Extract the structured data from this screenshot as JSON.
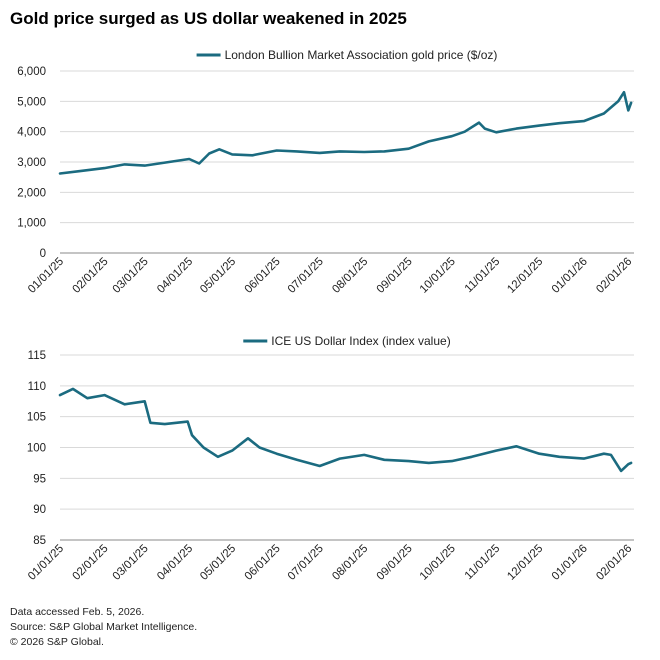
{
  "title": "Gold price surged as US dollar weakened in 2025",
  "footer": {
    "line1": "Data accessed Feb. 5, 2026.",
    "line2": "Source: S&P Global Market Intelligence.",
    "line3": "© 2026 S&P Global."
  },
  "colors": {
    "line": "#1b6b80",
    "grid": "#d9d9d9",
    "axis": "#888888"
  },
  "chart_data": [
    {
      "type": "line",
      "series": [
        {
          "name": "London Bullion Market Association gold price ($/oz)",
          "x": [
            "2025-01-01",
            "2025-01-15",
            "2025-02-01",
            "2025-02-15",
            "2025-03-01",
            "2025-03-15",
            "2025-04-01",
            "2025-04-08",
            "2025-04-15",
            "2025-04-22",
            "2025-05-01",
            "2025-05-15",
            "2025-06-01",
            "2025-06-15",
            "2025-07-01",
            "2025-07-15",
            "2025-08-01",
            "2025-08-15",
            "2025-09-01",
            "2025-09-15",
            "2025-10-01",
            "2025-10-10",
            "2025-10-20",
            "2025-10-24",
            "2025-11-01",
            "2025-11-15",
            "2025-12-01",
            "2025-12-15",
            "2026-01-01",
            "2026-01-15",
            "2026-01-25",
            "2026-01-29",
            "2026-02-01",
            "2026-02-03"
          ],
          "values": [
            2620,
            2700,
            2800,
            2920,
            2880,
            2980,
            3100,
            2950,
            3280,
            3420,
            3250,
            3220,
            3380,
            3350,
            3300,
            3350,
            3330,
            3350,
            3440,
            3680,
            3850,
            4000,
            4300,
            4100,
            3980,
            4100,
            4200,
            4280,
            4350,
            4600,
            5000,
            5300,
            4700,
            4950
          ]
        }
      ],
      "ylim": [
        0,
        6000
      ],
      "yticks": [
        "0",
        "1,000",
        "2,000",
        "3,000",
        "4,000",
        "5,000",
        "6,000"
      ],
      "ytick_values": [
        0,
        1000,
        2000,
        3000,
        4000,
        5000,
        6000
      ],
      "xtick_labels": [
        "01/01/25",
        "02/01/25",
        "03/01/25",
        "04/01/25",
        "05/01/25",
        "06/01/25",
        "07/01/25",
        "08/01/25",
        "09/01/25",
        "10/01/25",
        "11/01/25",
        "12/01/25",
        "01/01/26",
        "02/01/26"
      ],
      "xtick_dates": [
        "2025-01-01",
        "2025-02-01",
        "2025-03-01",
        "2025-04-01",
        "2025-05-01",
        "2025-06-01",
        "2025-07-01",
        "2025-08-01",
        "2025-09-01",
        "2025-10-01",
        "2025-11-01",
        "2025-12-01",
        "2026-01-01",
        "2026-02-01"
      ],
      "grid": true,
      "legend_position": "top-center"
    },
    {
      "type": "line",
      "series": [
        {
          "name": "ICE US Dollar Index (index value)",
          "x": [
            "2025-01-01",
            "2025-01-10",
            "2025-01-20",
            "2025-02-01",
            "2025-02-15",
            "2025-03-01",
            "2025-03-05",
            "2025-03-15",
            "2025-03-31",
            "2025-04-03",
            "2025-04-11",
            "2025-04-21",
            "2025-05-01",
            "2025-05-12",
            "2025-05-20",
            "2025-06-01",
            "2025-06-15",
            "2025-07-01",
            "2025-07-15",
            "2025-08-01",
            "2025-08-15",
            "2025-09-01",
            "2025-09-15",
            "2025-10-01",
            "2025-10-15",
            "2025-11-01",
            "2025-11-15",
            "2025-12-01",
            "2025-12-15",
            "2026-01-01",
            "2026-01-15",
            "2026-01-20",
            "2026-01-27",
            "2026-02-01",
            "2026-02-03"
          ],
          "values": [
            108.5,
            109.5,
            108.0,
            108.5,
            107.0,
            107.5,
            104.0,
            103.8,
            104.2,
            102.0,
            100.0,
            98.5,
            99.5,
            101.5,
            100.0,
            99.0,
            98.0,
            97.0,
            98.2,
            98.8,
            98.0,
            97.8,
            97.5,
            97.8,
            98.5,
            99.5,
            100.2,
            99.0,
            98.5,
            98.2,
            99.0,
            98.8,
            96.2,
            97.3,
            97.5
          ]
        }
      ],
      "ylim": [
        85,
        115
      ],
      "yticks": [
        "85",
        "90",
        "95",
        "100",
        "105",
        "110",
        "115"
      ],
      "ytick_values": [
        85,
        90,
        95,
        100,
        105,
        110,
        115
      ],
      "xtick_labels": [
        "01/01/25",
        "02/01/25",
        "03/01/25",
        "04/01/25",
        "05/01/25",
        "06/01/25",
        "07/01/25",
        "08/01/25",
        "09/01/25",
        "10/01/25",
        "11/01/25",
        "12/01/25",
        "01/01/26",
        "02/01/26"
      ],
      "xtick_dates": [
        "2025-01-01",
        "2025-02-01",
        "2025-03-01",
        "2025-04-01",
        "2025-05-01",
        "2025-06-01",
        "2025-07-01",
        "2025-08-01",
        "2025-09-01",
        "2025-10-01",
        "2025-11-01",
        "2025-12-01",
        "2026-01-01",
        "2026-02-01"
      ],
      "grid": true,
      "legend_position": "top-center"
    }
  ]
}
